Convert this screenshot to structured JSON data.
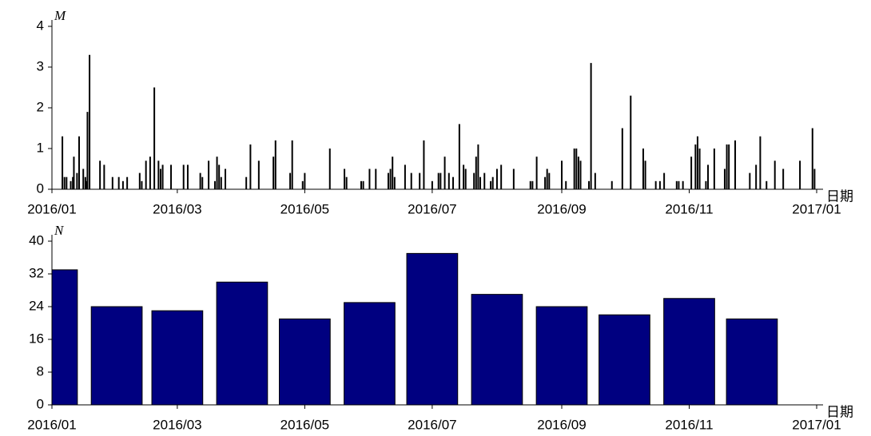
{
  "chart_data": [
    {
      "type": "stem",
      "y_label": "M",
      "x_label": "日期",
      "color": "#000000",
      "x": [
        5,
        6,
        7,
        9,
        10,
        10.5,
        12,
        13,
        15,
        16,
        16.5,
        17,
        18,
        23,
        25,
        29,
        32,
        34,
        36,
        42,
        43,
        45,
        47,
        49,
        51,
        52,
        53,
        57,
        63,
        65,
        71,
        72,
        75,
        78,
        79,
        80,
        81,
        83,
        93,
        95,
        99,
        106,
        107,
        114,
        115,
        120,
        121,
        133,
        140,
        141,
        148,
        149,
        152,
        155,
        161,
        162,
        163,
        164,
        169,
        172,
        176,
        178,
        182,
        185,
        186,
        188,
        190,
        192,
        195,
        197,
        198,
        202,
        203,
        204,
        205,
        207,
        210,
        211,
        213,
        215,
        221,
        229,
        230,
        232,
        236,
        237,
        238,
        244,
        246,
        250,
        251,
        252,
        253,
        257,
        258,
        260,
        268,
        273,
        277,
        283,
        284,
        289,
        291,
        293,
        299,
        300,
        302,
        306,
        308,
        309,
        310,
        313,
        314,
        317,
        322,
        323,
        324,
        327,
        334,
        337,
        339,
        342,
        346,
        350,
        358,
        364,
        365
      ],
      "values": [
        1.3,
        0.3,
        0.3,
        0.2,
        0.3,
        0.8,
        0.4,
        1.3,
        0.5,
        0.3,
        0.2,
        1.9,
        3.3,
        0.7,
        0.6,
        0.3,
        0.3,
        0.2,
        0.3,
        0.4,
        0.2,
        0.7,
        0.8,
        2.5,
        0.7,
        0.5,
        0.6,
        0.6,
        0.6,
        0.6,
        0.4,
        0.3,
        0.7,
        0.2,
        0.8,
        0.6,
        0.3,
        0.5,
        0.3,
        1.1,
        0.7,
        0.8,
        1.2,
        0.4,
        1.2,
        0.2,
        0.4,
        1.0,
        0.5,
        0.3,
        0.2,
        0.2,
        0.5,
        0.5,
        0.4,
        0.5,
        0.8,
        0.3,
        0.6,
        0.4,
        0.4,
        1.2,
        0.2,
        0.4,
        0.4,
        0.8,
        0.4,
        0.3,
        1.6,
        0.6,
        0.5,
        0.4,
        0.8,
        1.1,
        0.3,
        0.4,
        0.2,
        0.3,
        0.5,
        0.6,
        0.5,
        0.2,
        0.2,
        0.8,
        0.3,
        0.5,
        0.4,
        0.7,
        0.2,
        1.0,
        1.0,
        0.8,
        0.7,
        0.2,
        3.1,
        0.4,
        0.2,
        1.5,
        2.3,
        1.0,
        0.7,
        0.2,
        0.2,
        0.4,
        0.2,
        0.2,
        0.2,
        0.8,
        1.1,
        1.3,
        1.0,
        0.2,
        0.6,
        1.0,
        0.5,
        1.1,
        1.1,
        1.2,
        0.4,
        0.6,
        1.3,
        0.2,
        0.7,
        0.5,
        0.7,
        1.5,
        0.5
      ],
      "xlim": [
        0,
        366
      ],
      "xticks": [
        {
          "value": 0,
          "label": "2016/01"
        },
        {
          "value": 60,
          "label": "2016/03"
        },
        {
          "value": 121,
          "label": "2016/05"
        },
        {
          "value": 182,
          "label": "2016/07"
        },
        {
          "value": 244,
          "label": "2016/09"
        },
        {
          "value": 305,
          "label": "2016/11"
        },
        {
          "value": 366,
          "label": "2017/01"
        }
      ],
      "ylim": [
        0,
        4
      ],
      "yticks": [
        0,
        1,
        2,
        3,
        4
      ]
    },
    {
      "type": "bar",
      "y_label": "N",
      "x_label": "日期",
      "color": "#000080",
      "x": [
        0,
        31,
        60,
        91,
        121,
        152,
        182,
        213,
        244,
        274,
        305,
        335
      ],
      "values": [
        33,
        24,
        23,
        30,
        21,
        25,
        37,
        27,
        24,
        22,
        26,
        21
      ],
      "xlim": [
        0,
        366
      ],
      "xticks": [
        {
          "value": 0,
          "label": "2016/01"
        },
        {
          "value": 60,
          "label": "2016/03"
        },
        {
          "value": 121,
          "label": "2016/05"
        },
        {
          "value": 182,
          "label": "2016/07"
        },
        {
          "value": 244,
          "label": "2016/09"
        },
        {
          "value": 305,
          "label": "2016/11"
        },
        {
          "value": 366,
          "label": "2017/01"
        }
      ],
      "ylim": [
        0,
        40
      ],
      "yticks": [
        0,
        8,
        16,
        24,
        32,
        40
      ]
    }
  ]
}
